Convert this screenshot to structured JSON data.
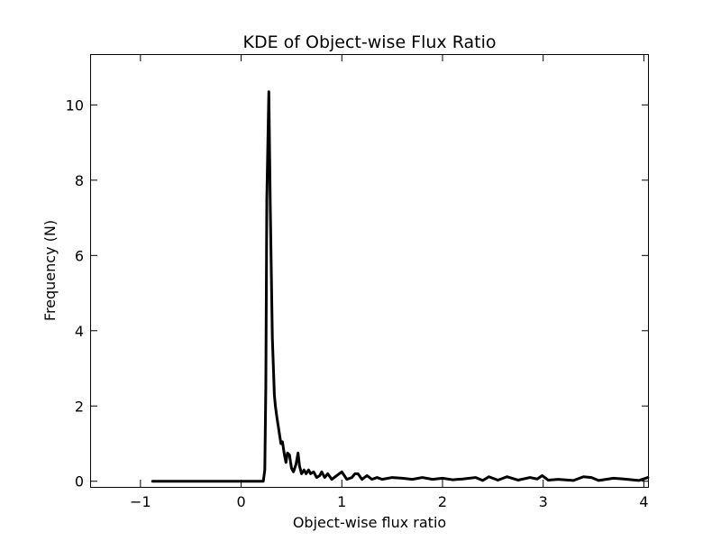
{
  "chart_data": {
    "type": "line",
    "title": "KDE of Object-wise Flux Ratio",
    "xlabel": "Object-wise flux ratio",
    "ylabel": "Frequency (N)",
    "xlim": [
      -1.5,
      4.05
    ],
    "ylim": [
      -0.15,
      11.35
    ],
    "x_ticks": [
      -1,
      0,
      1,
      2,
      3,
      4
    ],
    "x_tick_labels": [
      "−1",
      "0",
      "1",
      "2",
      "3",
      "4"
    ],
    "y_ticks": [
      0,
      2,
      4,
      6,
      8,
      10
    ],
    "y_tick_labels": [
      "0",
      "2",
      "4",
      "6",
      "8",
      "10"
    ],
    "grid": false,
    "series": [
      {
        "name": "KDE",
        "color": "#000000",
        "points": [
          [
            -0.88,
            0.0
          ],
          [
            0.22,
            0.0
          ],
          [
            0.235,
            0.3
          ],
          [
            0.245,
            2.5
          ],
          [
            0.255,
            7.5
          ],
          [
            0.275,
            10.35
          ],
          [
            0.29,
            7.2
          ],
          [
            0.31,
            3.8
          ],
          [
            0.33,
            2.3
          ],
          [
            0.34,
            2.0
          ],
          [
            0.355,
            1.7
          ],
          [
            0.375,
            1.35
          ],
          [
            0.395,
            1.0
          ],
          [
            0.41,
            1.05
          ],
          [
            0.43,
            0.7
          ],
          [
            0.445,
            0.5
          ],
          [
            0.46,
            0.75
          ],
          [
            0.48,
            0.7
          ],
          [
            0.5,
            0.35
          ],
          [
            0.52,
            0.25
          ],
          [
            0.545,
            0.45
          ],
          [
            0.565,
            0.75
          ],
          [
            0.58,
            0.4
          ],
          [
            0.6,
            0.2
          ],
          [
            0.625,
            0.3
          ],
          [
            0.645,
            0.2
          ],
          [
            0.67,
            0.3
          ],
          [
            0.69,
            0.2
          ],
          [
            0.72,
            0.25
          ],
          [
            0.75,
            0.1
          ],
          [
            0.78,
            0.15
          ],
          [
            0.8,
            0.25
          ],
          [
            0.83,
            0.1
          ],
          [
            0.86,
            0.2
          ],
          [
            0.9,
            0.05
          ],
          [
            0.95,
            0.15
          ],
          [
            1.0,
            0.25
          ],
          [
            1.05,
            0.05
          ],
          [
            1.1,
            0.1
          ],
          [
            1.13,
            0.2
          ],
          [
            1.16,
            0.2
          ],
          [
            1.2,
            0.05
          ],
          [
            1.25,
            0.15
          ],
          [
            1.3,
            0.05
          ],
          [
            1.35,
            0.1
          ],
          [
            1.4,
            0.05
          ],
          [
            1.5,
            0.1
          ],
          [
            1.6,
            0.08
          ],
          [
            1.7,
            0.05
          ],
          [
            1.8,
            0.1
          ],
          [
            1.9,
            0.05
          ],
          [
            2.0,
            0.08
          ],
          [
            2.1,
            0.04
          ],
          [
            2.2,
            0.06
          ],
          [
            2.33,
            0.1
          ],
          [
            2.4,
            0.02
          ],
          [
            2.46,
            0.12
          ],
          [
            2.55,
            0.03
          ],
          [
            2.64,
            0.12
          ],
          [
            2.75,
            0.03
          ],
          [
            2.87,
            0.1
          ],
          [
            2.94,
            0.06
          ],
          [
            2.99,
            0.15
          ],
          [
            3.05,
            0.03
          ],
          [
            3.15,
            0.05
          ],
          [
            3.3,
            0.02
          ],
          [
            3.4,
            0.12
          ],
          [
            3.48,
            0.1
          ],
          [
            3.55,
            0.02
          ],
          [
            3.7,
            0.08
          ],
          [
            3.8,
            0.06
          ],
          [
            3.95,
            0.02
          ],
          [
            4.04,
            0.1
          ]
        ]
      }
    ]
  }
}
